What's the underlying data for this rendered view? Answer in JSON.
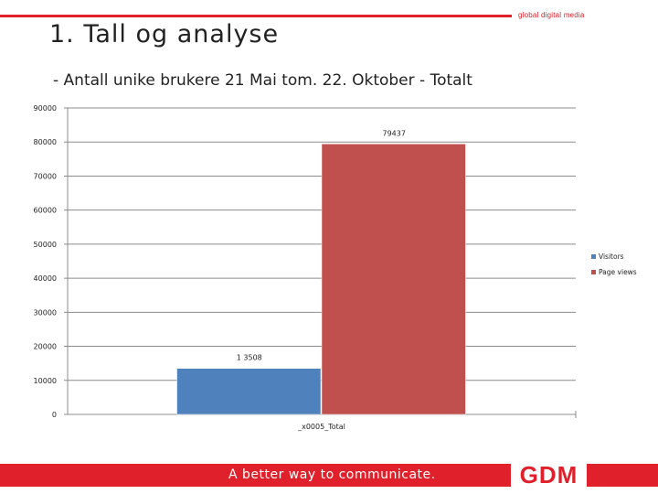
{
  "header": {
    "tagline": "global digital media",
    "title": "1. Tall og analyse"
  },
  "chart_data": {
    "type": "bar",
    "title": "- Antall unike brukere 21 Mai tom. 22. Oktober - Totalt",
    "categories": [
      "_x0005_Total"
    ],
    "series": [
      {
        "name": "Visitors",
        "values": [
          13508
        ],
        "label": "1 3508",
        "color": "#4f81bd"
      },
      {
        "name": "Page views",
        "values": [
          79437
        ],
        "label": "79437",
        "color": "#c0504d"
      }
    ],
    "yticks": [
      "0",
      "10000",
      "20000",
      "30000",
      "40000",
      "50000",
      "60000",
      "70000",
      "80000",
      "90000"
    ],
    "ylim": [
      0,
      90000
    ],
    "grid": true,
    "legend_position": "right"
  },
  "footer": {
    "slogan": "A better way to communicate.",
    "logo": "GDM"
  }
}
